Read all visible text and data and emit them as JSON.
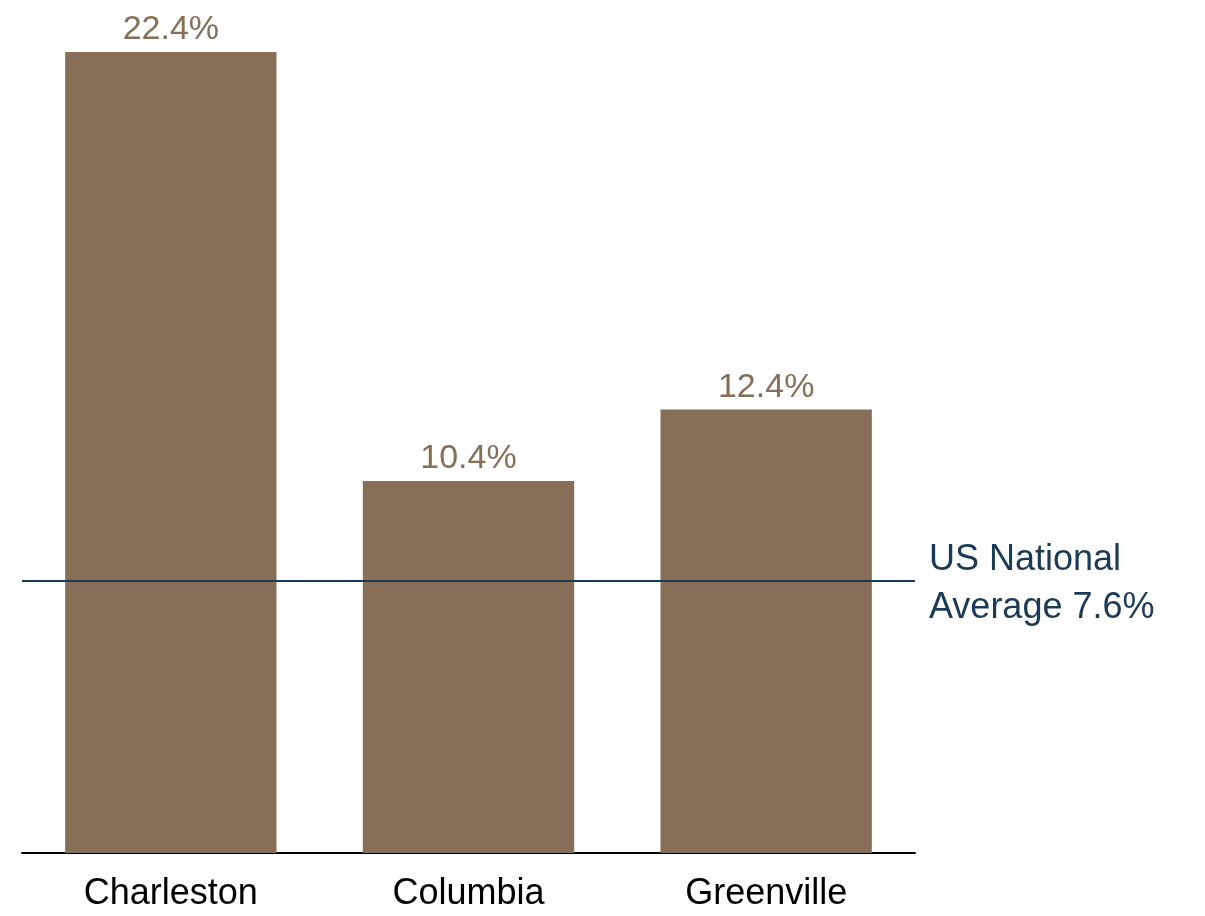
{
  "chart_data": {
    "type": "bar",
    "categories": [
      "Charleston",
      "Columbia",
      "Greenville"
    ],
    "series": [
      {
        "color": "#876e56",
        "values": [
          22.4,
          10.4,
          12.4
        ],
        "value_labels": [
          "22.4%",
          "10.4%",
          "12.4%"
        ]
      }
    ],
    "ylim": [
      0,
      22.4
    ],
    "tick_labels": "x",
    "grid": false,
    "ref_lines": [
      {
        "axis": "y",
        "value": 7.6,
        "label": "US National Average 7.6%",
        "color": "#1b3a57",
        "line_style": "solid"
      }
    ]
  }
}
